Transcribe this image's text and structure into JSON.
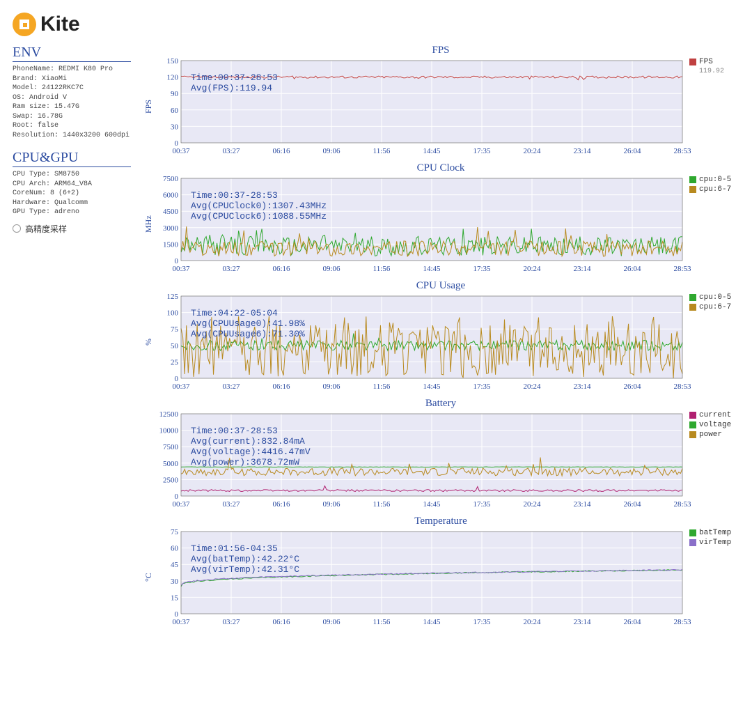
{
  "brand": {
    "name": "Kite"
  },
  "env": {
    "title": "ENV",
    "lines": [
      "PhoneName: REDMI K80 Pro",
      "Brand: XiaoMi",
      "Model: 24122RKC7C",
      "OS: Android V",
      "Ram size: 15.47G",
      "Swap: 16.78G",
      "Root: false",
      "Resolution: 1440x3200 600dpi"
    ]
  },
  "cpugpu": {
    "title": "CPU&GPU",
    "lines": [
      "CPU Type: SM8750",
      "CPU Arch: ARM64_V8A",
      "CoreNum: 8 (6+2)",
      "Hardware: Qualcomm",
      "GPU Type: adreno"
    ],
    "radio_label": "高精度采样"
  },
  "x_ticks": [
    "00:37",
    "03:27",
    "06:16",
    "09:06",
    "11:56",
    "14:45",
    "17:35",
    "20:24",
    "23:14",
    "26:04",
    "28:53"
  ],
  "colors": {
    "axis": "#2b4ba0",
    "plot_bg": "#e8e8f5",
    "grid": "#ffffff",
    "red": "#c04040",
    "green": "#2fa82f",
    "gold": "#b88a1f",
    "magenta": "#b02070",
    "purple": "#8a6fc9"
  },
  "charts": {
    "fps": {
      "title": "FPS",
      "ylabel": "FPS",
      "type": "line",
      "ylim": [
        0,
        150
      ],
      "ytick_step": 30,
      "height": 140,
      "overlay": [
        "Time:00:37-28:53",
        "Avg(FPS):119.94"
      ],
      "legend": [
        {
          "label": "FPS",
          "color": "#c04040",
          "value": "119.92"
        }
      ],
      "series": [
        {
          "color": "#c04040",
          "baseline": 120,
          "jitter": 2,
          "dips": 8
        }
      ]
    },
    "cpuclock": {
      "title": "CPU Clock",
      "ylabel": "MHz",
      "type": "line",
      "ylim": [
        0,
        7500
      ],
      "ytick_step": 1500,
      "height": 140,
      "overlay": [
        "Time:00:37-28:53",
        "Avg(CPUClock0):1307.43MHz",
        "Avg(CPUClock6):1088.55MHz"
      ],
      "legend": [
        {
          "label": "cpu:0-5",
          "color": "#2fa82f"
        },
        {
          "label": "cpu:6-7",
          "color": "#b88a1f"
        }
      ],
      "series": [
        {
          "color": "#2fa82f",
          "baseline": 1307,
          "jitter": 900,
          "spikes": 20,
          "spike_max": 3000
        },
        {
          "color": "#b88a1f",
          "baseline": 1088,
          "jitter": 700,
          "spikes": 15,
          "spike_max": 3200
        }
      ]
    },
    "cpuusage": {
      "title": "CPU Usage",
      "ylabel": "%",
      "type": "line",
      "ylim": [
        0,
        125
      ],
      "ytick_step": 25,
      "height": 140,
      "overlay": [
        "Time:04:22-05:04",
        "Avg(CPUUsage0):41.98%",
        "Avg(CPUUsage6):71.30%"
      ],
      "legend": [
        {
          "label": "cpu:0-5",
          "color": "#2fa82f"
        },
        {
          "label": "cpu:6-7",
          "color": "#b88a1f"
        }
      ],
      "series": [
        {
          "color": "#2fa82f",
          "baseline": 50,
          "jitter": 8,
          "spikes": 5,
          "spike_max": 70
        },
        {
          "color": "#b88a1f",
          "baseline": 45,
          "jitter": 40,
          "spikes": 40,
          "spike_max": 95,
          "drops": 35
        }
      ]
    },
    "battery": {
      "title": "Battery",
      "ylabel": "",
      "type": "line",
      "ylim": [
        0,
        12500
      ],
      "ytick_step": 2500,
      "height": 140,
      "overlay": [
        "Time:00:37-28:53",
        "Avg(current):832.84mA",
        "Avg(voltage):4416.47mV",
        "Avg(power):3678.72mW"
      ],
      "legend": [
        {
          "label": "current",
          "color": "#b02070"
        },
        {
          "label": "voltage",
          "color": "#2fa82f"
        },
        {
          "label": "power",
          "color": "#b88a1f"
        }
      ],
      "series": [
        {
          "color": "#b02070",
          "baseline": 833,
          "jitter": 150,
          "spikes": 4,
          "spike_max": 1600
        },
        {
          "color": "#2fa82f",
          "baseline": 4416,
          "jitter": 30
        },
        {
          "color": "#b88a1f",
          "baseline": 3679,
          "jitter": 600,
          "spikes": 10,
          "spike_max": 6000
        }
      ]
    },
    "temperature": {
      "title": "Temperature",
      "ylabel": "°C",
      "type": "line",
      "ylim": [
        0,
        75
      ],
      "ytick_step": 15,
      "height": 140,
      "overlay": [
        "Time:01:56-04:35",
        "Avg(batTemp):42.22°C",
        "Avg(virTemp):42.31°C"
      ],
      "legend": [
        {
          "label": "batTemp",
          "color": "#2fa82f"
        },
        {
          "label": "virTemp",
          "color": "#8a6fc9"
        }
      ],
      "series": [
        {
          "color": "#2fa82f",
          "curve": "rise",
          "start": 25,
          "end": 40,
          "jitter": 1
        },
        {
          "color": "#8a6fc9",
          "curve": "rise",
          "start": 26,
          "end": 40,
          "jitter": 1
        }
      ]
    }
  }
}
